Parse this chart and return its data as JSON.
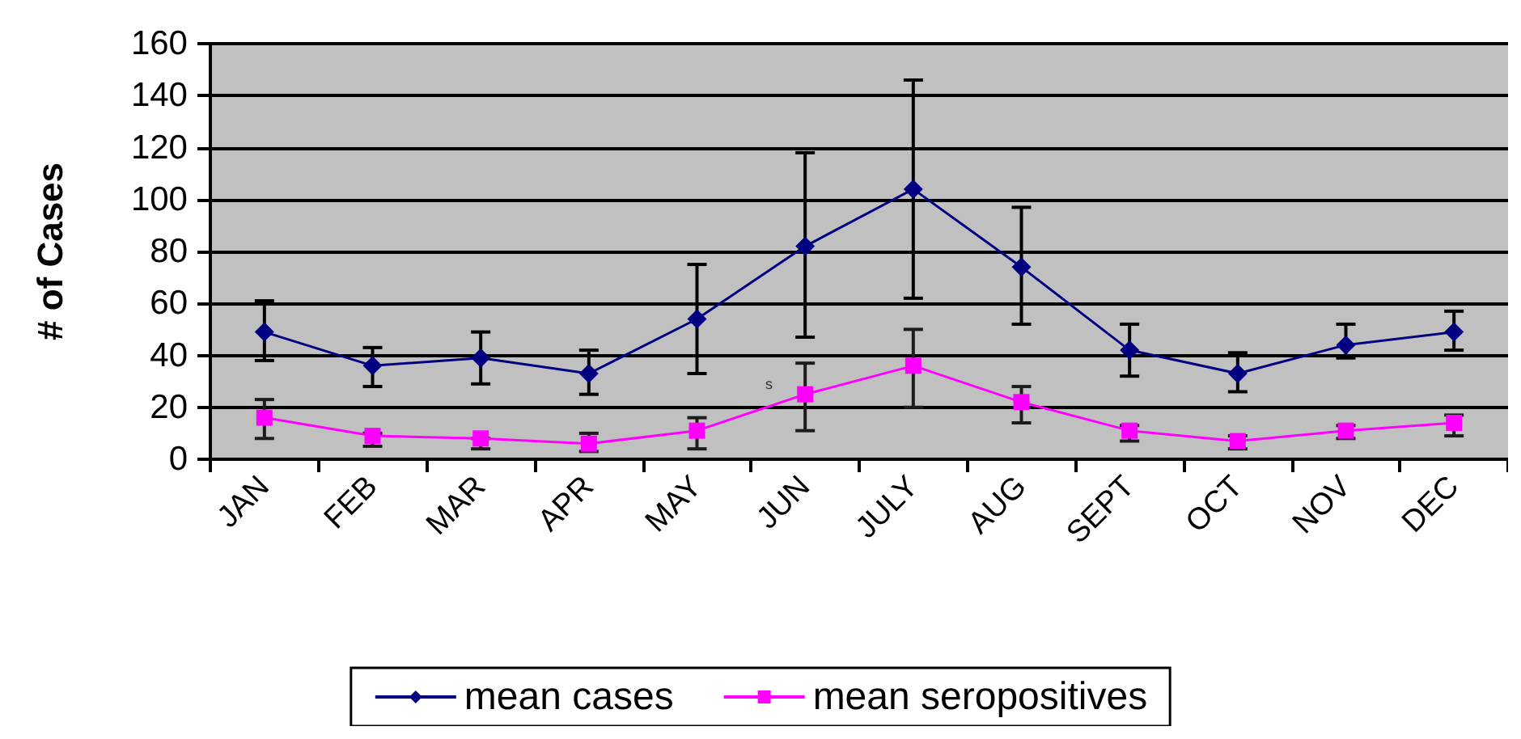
{
  "chart_data": {
    "type": "line",
    "ylabel": "# of Cases",
    "categories": [
      "JAN",
      "FEB",
      "MAR",
      "APR",
      "MAY",
      "JUN",
      "JULY",
      "AUG",
      "SEPT",
      "OCT",
      "NOV",
      "DEC"
    ],
    "series": [
      {
        "name": "mean cases",
        "color": "#000080",
        "marker": "diamond",
        "values": [
          49,
          36,
          39,
          33,
          54,
          82,
          104,
          74,
          42,
          33,
          44,
          49
        ],
        "errors": [
          [
            38,
            61
          ],
          [
            28,
            43
          ],
          [
            29,
            49
          ],
          [
            25,
            42
          ],
          [
            33,
            75
          ],
          [
            47,
            118
          ],
          [
            62,
            146
          ],
          [
            52,
            97
          ],
          [
            32,
            52
          ],
          [
            26,
            41
          ],
          [
            39,
            52
          ],
          [
            42,
            57
          ]
        ]
      },
      {
        "name": "mean seropositives",
        "color": "#ff00ff",
        "marker": "square",
        "values": [
          16,
          9,
          8,
          6,
          11,
          25,
          36,
          22,
          11,
          7,
          11,
          14
        ],
        "errors": [
          [
            8,
            23
          ],
          [
            5,
            10
          ],
          [
            4,
            8
          ],
          [
            3,
            10
          ],
          [
            4,
            16
          ],
          [
            11,
            37
          ],
          [
            20,
            50
          ],
          [
            14,
            28
          ],
          [
            7,
            13
          ],
          [
            4,
            9
          ],
          [
            8,
            13
          ],
          [
            9,
            17
          ]
        ]
      }
    ],
    "ylim": [
      0,
      160
    ],
    "yticks": [
      0,
      20,
      40,
      60,
      80,
      100,
      120,
      140,
      160
    ],
    "grid": "y",
    "legend": "bottom",
    "line_style": "solid",
    "annotations": [
      "s"
    ]
  }
}
